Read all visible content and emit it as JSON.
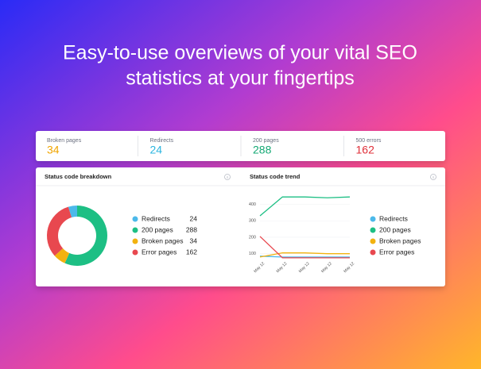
{
  "headline": {
    "lines": [
      "Easy-to-use overviews of your vital SEO",
      "statistics at your fingertips"
    ]
  },
  "stats": [
    {
      "label": "Broken pages",
      "value": 34,
      "color": "#f0a500"
    },
    {
      "label": "Redirects",
      "value": 24,
      "color": "#2bb5e0"
    },
    {
      "label": "200 pages",
      "value": 288,
      "color": "#14a874"
    },
    {
      "label": "500 errors",
      "value": 162,
      "color": "#e0303a"
    }
  ],
  "chart_data": [
    {
      "type": "donut",
      "title": "Status code breakdown",
      "categories": [
        "Redirects",
        "200 pages",
        "Broken pages",
        "Error pages"
      ],
      "values": [
        24,
        288,
        34,
        162
      ],
      "colors": [
        "#4cb9ea",
        "#1dbf84",
        "#f2b20f",
        "#e8484f"
      ]
    },
    {
      "type": "line",
      "title": "Status code trend",
      "x": [
        "May 12",
        "May 12",
        "May 12",
        "May 12",
        "May 12"
      ],
      "ylim": [
        60,
        470
      ],
      "yticks": [
        100,
        200,
        300,
        400
      ],
      "series": [
        {
          "name": "Redirects",
          "color": "#4cb9ea",
          "values": [
            85,
            80,
            80,
            80,
            80
          ]
        },
        {
          "name": "200 pages",
          "color": "#1dbf84",
          "values": [
            330,
            445,
            445,
            440,
            445
          ]
        },
        {
          "name": "Broken pages",
          "color": "#f2b20f",
          "values": [
            80,
            105,
            105,
            100,
            100
          ]
        },
        {
          "name": "Error pages",
          "color": "#e8484f",
          "values": [
            205,
            75,
            75,
            75,
            75
          ]
        }
      ]
    }
  ]
}
